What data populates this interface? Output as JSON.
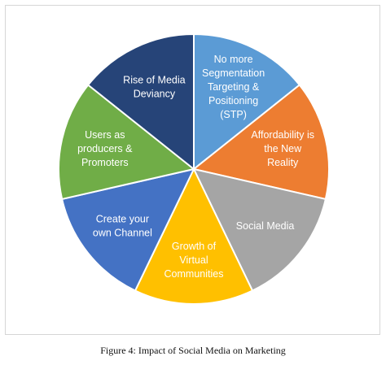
{
  "caption": "Figure 4: Impact of Social Media on Marketing",
  "chart_data": {
    "type": "pie",
    "title": "",
    "slices": [
      {
        "label": [
          "No more",
          "Segmentation",
          "Targeting &",
          "Positioning",
          "(STP)"
        ],
        "value": 1,
        "color": "#5b9bd5"
      },
      {
        "label": [
          "Affordability is",
          "the New",
          "Reality"
        ],
        "value": 1,
        "color": "#ed7d31"
      },
      {
        "label": [
          "Social Media"
        ],
        "value": 1,
        "color": "#a5a5a5"
      },
      {
        "label": [
          "Growth of",
          "Virtual",
          "Communities"
        ],
        "value": 1,
        "color": "#ffc000"
      },
      {
        "label": [
          "Create your",
          "own Channel"
        ],
        "value": 1,
        "color": "#4472c4"
      },
      {
        "label": [
          "Users as",
          "producers &",
          "Promoters"
        ],
        "value": 1,
        "color": "#70ad47"
      },
      {
        "label": [
          "Rise of Media",
          "Deviancy"
        ],
        "value": 1,
        "color": "#264478"
      }
    ]
  }
}
